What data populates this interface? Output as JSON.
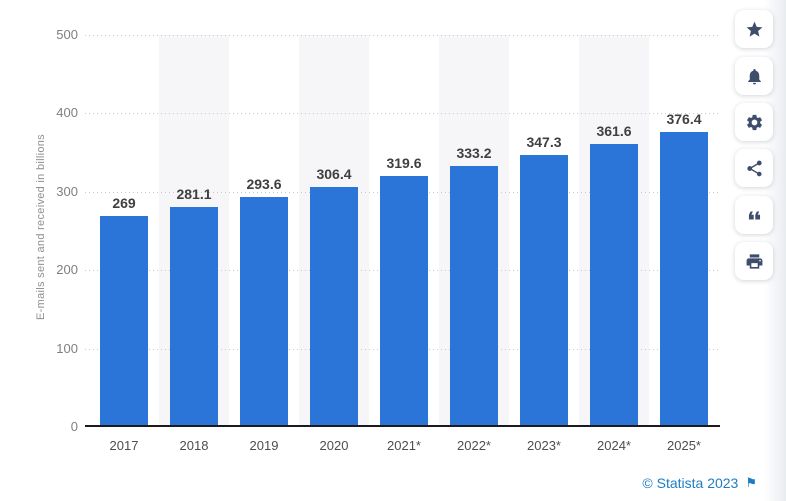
{
  "chart_data": {
    "type": "bar",
    "title": "",
    "categories": [
      "2017",
      "2018",
      "2019",
      "2020",
      "2021*",
      "2022*",
      "2023*",
      "2024*",
      "2025*"
    ],
    "values": [
      269,
      281.1,
      293.6,
      306.4,
      319.6,
      333.2,
      347.3,
      361.6,
      376.4
    ],
    "value_labels": [
      "269",
      "281.1",
      "293.6",
      "306.4",
      "319.6",
      "333.2",
      "347.3",
      "361.6",
      "376.4"
    ],
    "xlabel": "",
    "ylabel": "E-mails sent and received in billions",
    "ylim": [
      0,
      500
    ],
    "yticks": [
      0,
      100,
      200,
      300,
      400,
      500
    ],
    "grid": "horizontal-dotted",
    "legend": "none",
    "striped_categories": [
      "2018",
      "2020",
      "2022*",
      "2024*"
    ],
    "colors": {
      "bar": "#2b74d8",
      "stripe": "#f6f6f8",
      "gridline": "#c9c9c9",
      "axis": "#1b1b1f",
      "value_label": "#3f3f3f",
      "category_label": "#4e4e4e",
      "tick_label": "#7f7f7f",
      "axis_title": "#8f8f8f"
    }
  },
  "sidebar": {
    "icon_color": "#3d4d6b",
    "buttons": [
      {
        "name": "favorite",
        "icon": "star-icon"
      },
      {
        "name": "notifications",
        "icon": "bell-icon"
      },
      {
        "name": "settings",
        "icon": "gear-icon"
      },
      {
        "name": "share",
        "icon": "share-icon"
      },
      {
        "name": "cite",
        "icon": "quote-icon"
      },
      {
        "name": "print",
        "icon": "printer-icon"
      }
    ]
  },
  "footer": {
    "attribution": "© Statista 2023",
    "flag_glyph": "⚑",
    "link_color": "#1e7dc2"
  }
}
